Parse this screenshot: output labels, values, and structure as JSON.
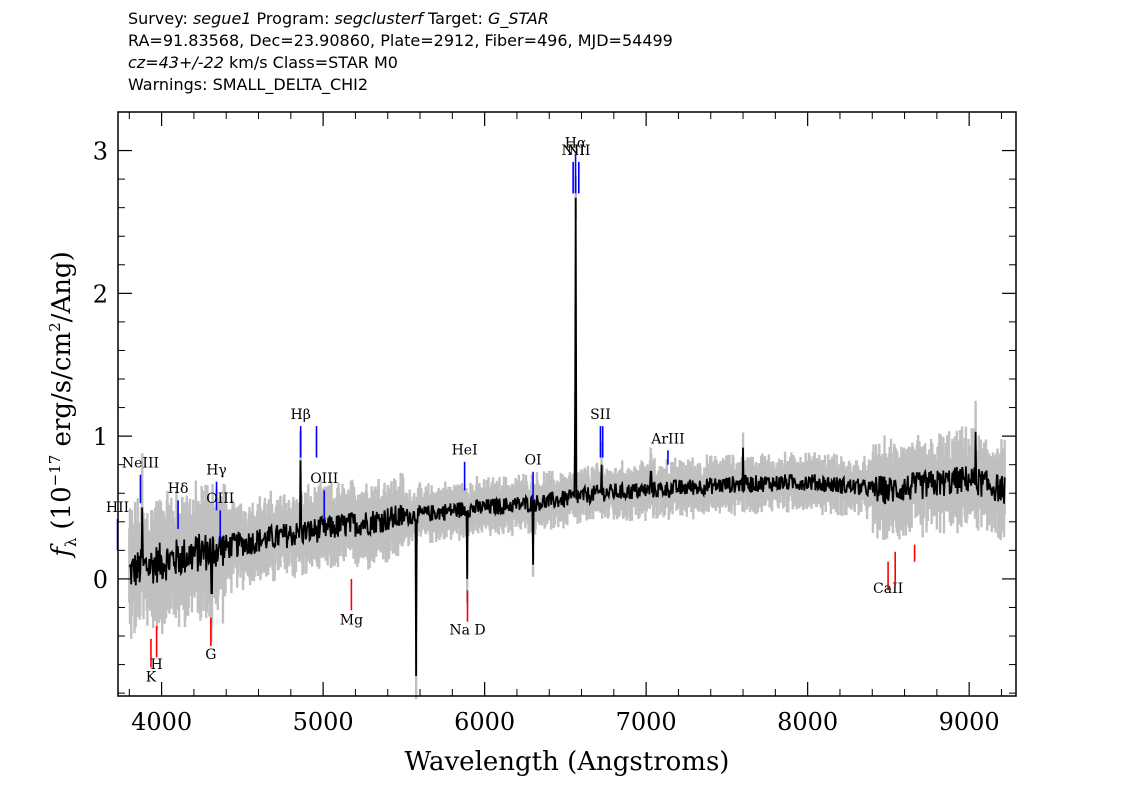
{
  "header": {
    "line1_survey_label": "Survey: ",
    "line1_survey": "segue1",
    "line1_program_label": " Program: ",
    "line1_program": "segclusterf",
    "line1_target_label": " Target: ",
    "line1_target": "G_STAR",
    "line2": "RA=91.83568, Dec=23.90860, Plate=2912, Fiber=496, MJD=54499",
    "line3_cz": "cz=43+/-22",
    "line3_rest": " km/s Class=STAR M0",
    "line4": "Warnings: SMALL_DELTA_CHI2"
  },
  "colors": {
    "flux": "#000000",
    "error": "#c0c0c0",
    "emission": "#0000ff",
    "absorption": "#ff0000"
  },
  "chart_data": {
    "type": "line",
    "xlabel": "Wavelength (Angstroms)",
    "ylabel_prefix": "f",
    "ylabel_sub": "λ",
    "ylabel_unit": "(10",
    "ylabel_exp": "−17",
    "ylabel_unit2": " erg/s/cm",
    "ylabel_exp2": "2",
    "ylabel_unit3": "/Ang)",
    "xlim": [
      3730,
      9290
    ],
    "ylim": [
      -0.82,
      3.27
    ],
    "xticks": [
      4000,
      5000,
      6000,
      7000,
      8000,
      9000
    ],
    "yticks": [
      0,
      1,
      2,
      3
    ],
    "series": [
      {
        "role": "flux",
        "continuum_x": [
          3800,
          4000,
          4300,
          4600,
          5000,
          5400,
          5800,
          6000,
          6300,
          6500,
          6700,
          7000,
          7500,
          8000,
          8500,
          9000,
          9220
        ],
        "continuum_y": [
          0.05,
          0.12,
          0.2,
          0.27,
          0.35,
          0.42,
          0.48,
          0.5,
          0.53,
          0.56,
          0.6,
          0.62,
          0.66,
          0.68,
          0.62,
          0.7,
          0.62
        ],
        "features": [
          {
            "x": 3880,
            "y": 0.5
          },
          {
            "x": 4310,
            "y": -0.1
          },
          {
            "x": 4861,
            "y": 0.83
          },
          {
            "x": 5577,
            "y": -0.68
          },
          {
            "x": 5893,
            "y": 0.0
          },
          {
            "x": 6300,
            "y": 0.1
          },
          {
            "x": 6565,
            "y": 2.67
          },
          {
            "x": 6560,
            "y": 1.15
          },
          {
            "x": 6725,
            "y": 0.8
          },
          {
            "x": 7030,
            "y": 0.75
          },
          {
            "x": 7600,
            "y": 0.92
          },
          {
            "x": 9040,
            "y": 1.03
          }
        ]
      }
    ],
    "line_markers": [
      {
        "label": "HII",
        "x": 3727,
        "type": "emission",
        "y0": 0.2,
        "y1": 0.42,
        "label_y": 0.47
      },
      {
        "label": "NeIII",
        "x": 3869,
        "type": "emission",
        "y0": 0.53,
        "y1": 0.73,
        "label_y": 0.78
      },
      {
        "label": "Hδ",
        "x": 4102,
        "type": "emission",
        "y0": 0.35,
        "y1": 0.55,
        "label_y": 0.6
      },
      {
        "label": "Hγ",
        "x": 4340,
        "type": "emission",
        "y0": 0.48,
        "y1": 0.68,
        "label_y": 0.73
      },
      {
        "label": "OIII",
        "x": 4363,
        "type": "emission",
        "y0": 0.28,
        "y1": 0.48,
        "label_y": 0.53
      },
      {
        "label": "Hβ",
        "x": 4861,
        "type": "emission",
        "y0": 0.85,
        "y1": 1.07,
        "label_y": 1.12
      },
      {
        "label": "",
        "x": 4959,
        "type": "emission",
        "y0": 0.85,
        "y1": 1.07,
        "label_y": 0
      },
      {
        "label": "OIII",
        "x": 5007,
        "type": "emission",
        "y0": 0.42,
        "y1": 0.62,
        "label_y": 0.67
      },
      {
        "label": "HeI",
        "x": 5876,
        "type": "emission",
        "y0": 0.62,
        "y1": 0.82,
        "label_y": 0.87
      },
      {
        "label": "OI",
        "x": 6300,
        "type": "emission",
        "y0": 0.55,
        "y1": 0.75,
        "label_y": 0.8
      },
      {
        "label": "NII",
        "x": 6548,
        "type": "emission",
        "y0": 2.7,
        "y1": 2.92,
        "label_y": 2.97
      },
      {
        "label": "Hα",
        "x": 6563,
        "type": "emission",
        "y0": 2.7,
        "y1": 2.97,
        "label_y": 3.02
      },
      {
        "label": "NII",
        "x": 6583,
        "type": "emission",
        "y0": 2.7,
        "y1": 2.92,
        "label_y": 2.97
      },
      {
        "label": "SII",
        "x": 6717,
        "type": "emission",
        "y0": 0.85,
        "y1": 1.07,
        "label_y": 1.12
      },
      {
        "label": "",
        "x": 6731,
        "type": "emission",
        "y0": 0.85,
        "y1": 1.07,
        "label_y": 0
      },
      {
        "label": "ArIII",
        "x": 7135,
        "type": "emission",
        "y0": 0.8,
        "y1": 0.9,
        "label_y": 0.95
      },
      {
        "label": "K",
        "x": 3934,
        "type": "absorption",
        "y0": -0.62,
        "y1": -0.42,
        "label_y": -0.72
      },
      {
        "label": "H",
        "x": 3969,
        "type": "absorption",
        "y0": -0.55,
        "y1": -0.33,
        "label_y": -0.63
      },
      {
        "label": "G",
        "x": 4305,
        "type": "absorption",
        "y0": -0.47,
        "y1": -0.27,
        "label_y": -0.56
      },
      {
        "label": "Mg",
        "x": 5175,
        "type": "absorption",
        "y0": -0.22,
        "y1": 0.0,
        "label_y": -0.32
      },
      {
        "label": "Na D",
        "x": 5894,
        "type": "absorption",
        "y0": -0.3,
        "y1": -0.08,
        "label_y": -0.39
      },
      {
        "label": "CaII",
        "x": 8498,
        "type": "absorption",
        "y0": -0.08,
        "y1": 0.12,
        "label_y": -0.1
      },
      {
        "label": "",
        "x": 8542,
        "type": "absorption",
        "y0": -0.05,
        "y1": 0.19,
        "label_y": 0
      },
      {
        "label": "",
        "x": 8662,
        "type": "absorption",
        "y0": 0.12,
        "y1": 0.24,
        "label_y": 0
      }
    ]
  }
}
